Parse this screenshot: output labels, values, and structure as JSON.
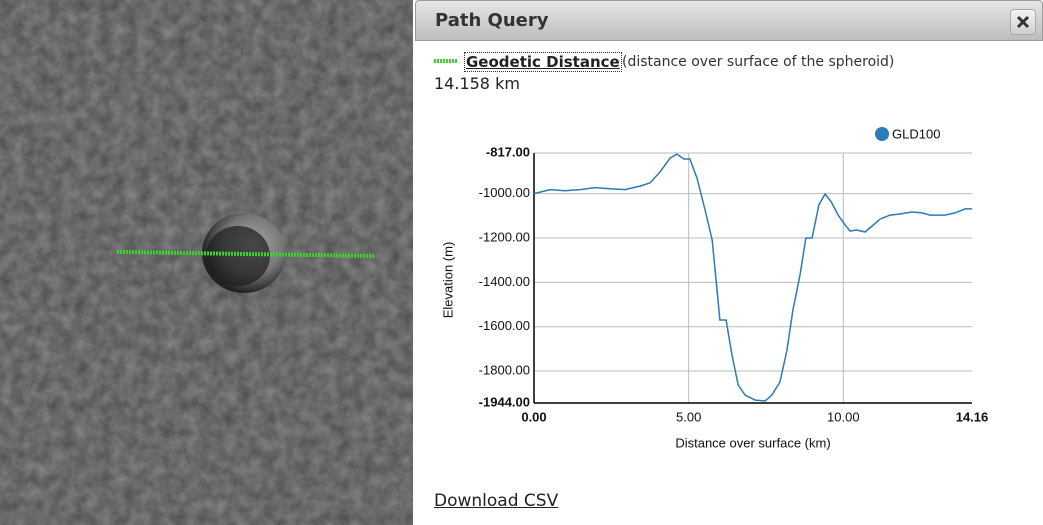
{
  "panel": {
    "title": "Path Query",
    "measure": {
      "name": "Geodetic Distance",
      "description": "(distance over surface of the spheroid)",
      "value": "14.158 km"
    },
    "download": "Download CSV"
  },
  "chart_data": {
    "type": "line",
    "xlabel": "Distance over surface (km)",
    "ylabel": "Elevation (m)",
    "x": [
      0,
      0.52,
      1.0,
      1.49,
      1.97,
      2.46,
      2.94,
      3.43,
      3.75,
      4.07,
      4.4,
      4.62,
      4.85,
      5.04,
      5.27,
      5.53,
      5.76,
      6.01,
      6.21,
      6.4,
      6.6,
      6.82,
      7.15,
      7.47,
      7.69,
      7.95,
      8.18,
      8.37,
      8.6,
      8.79,
      8.99,
      9.21,
      9.41,
      9.61,
      9.83,
      10.06,
      10.22,
      10.44,
      10.7,
      10.93,
      11.19,
      11.51,
      11.83,
      12.22,
      12.55,
      12.8,
      13.29,
      13.61,
      13.94,
      14.16
    ],
    "series": [
      {
        "name": "GLD100",
        "color": "#2b7bb9",
        "values": [
          -1000,
          -982,
          -987,
          -982,
          -973,
          -978,
          -982,
          -966,
          -952,
          -903,
          -840,
          -822,
          -844,
          -844,
          -930,
          -1074,
          -1209,
          -1570,
          -1570,
          -1728,
          -1863,
          -1908,
          -1931,
          -1935,
          -1908,
          -1850,
          -1705,
          -1525,
          -1367,
          -1200,
          -1200,
          -1051,
          -1002,
          -1038,
          -1097,
          -1142,
          -1169,
          -1164,
          -1173,
          -1146,
          -1115,
          -1097,
          -1092,
          -1083,
          -1087,
          -1097,
          -1097,
          -1087,
          -1069,
          -1069
        ]
      }
    ],
    "xlim": [
      0,
      14.16
    ],
    "ylim": [
      -1944,
      -817
    ],
    "xticks": [
      {
        "value": 0,
        "label": "0.00"
      },
      {
        "value": 5,
        "label": "5.00"
      },
      {
        "value": 10,
        "label": "10.00"
      },
      {
        "value": 14.16,
        "label": "14.16"
      }
    ],
    "yticks": [
      {
        "value": -817,
        "label": "-817.00"
      },
      {
        "value": -1000,
        "label": "-1000.00"
      },
      {
        "value": -1200,
        "label": "-1200.00"
      },
      {
        "value": -1400,
        "label": "-1400.00"
      },
      {
        "value": -1600,
        "label": "-1600.00"
      },
      {
        "value": -1800,
        "label": "-1800.00"
      },
      {
        "value": -1944,
        "label": "-1944.00"
      }
    ],
    "grid": true
  }
}
